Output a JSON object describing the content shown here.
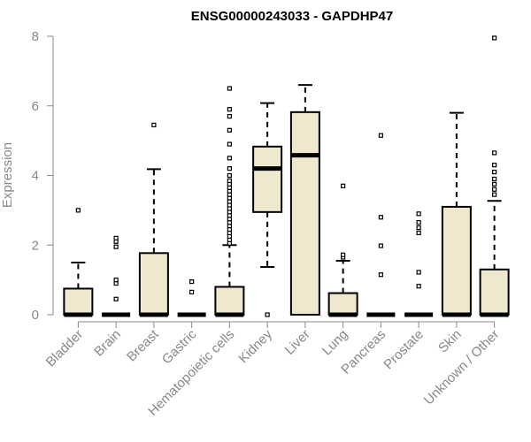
{
  "chart_data": {
    "type": "boxplot",
    "title": "ENSG00000243033 - GAPDHP47",
    "xlabel": "",
    "ylabel": "Expression",
    "ylim": [
      0,
      8
    ],
    "yticks": [
      0,
      2,
      4,
      6,
      8
    ],
    "grid": false,
    "colors": {
      "box_fill": "#efe8cf",
      "stroke": "#000000",
      "axis": "#888888"
    },
    "categories": [
      "Bladder",
      "Brain",
      "Breast",
      "Gastric",
      "Hematopoietic cells",
      "Kidney",
      "Liver",
      "Lung",
      "Pancreas",
      "Prostate",
      "Skin",
      "Unknown / Other"
    ],
    "boxes": [
      {
        "name": "Bladder",
        "q1": 0,
        "median": 0,
        "q3": 0.75,
        "whisker_low": 0,
        "whisker_high": 1.5,
        "outliers": [
          3.0
        ]
      },
      {
        "name": "Brain",
        "q1": 0,
        "median": 0,
        "q3": 0,
        "whisker_low": 0,
        "whisker_high": 0,
        "outliers": [
          0.45,
          0.9,
          1.0,
          1.95,
          2.1,
          2.2
        ]
      },
      {
        "name": "Breast",
        "q1": 0,
        "median": 0,
        "q3": 1.77,
        "whisker_low": 0,
        "whisker_high": 4.18,
        "outliers": [
          5.45
        ]
      },
      {
        "name": "Gastric",
        "q1": 0,
        "median": 0,
        "q3": 0,
        "whisker_low": 0,
        "whisker_high": 0,
        "outliers": [
          0.65,
          0.95
        ]
      },
      {
        "name": "Hematopoietic cells",
        "q1": 0,
        "median": 0,
        "q3": 0.8,
        "whisker_low": 0,
        "whisker_high": 2.0,
        "outliers": [
          2.05,
          2.15,
          2.25,
          2.35,
          2.45,
          2.55,
          2.65,
          2.75,
          2.85,
          2.95,
          3.05,
          3.15,
          3.25,
          3.35,
          3.45,
          3.55,
          3.65,
          3.75,
          3.85,
          4.0,
          4.2,
          4.5,
          4.9,
          5.3,
          5.7,
          5.9,
          6.5
        ]
      },
      {
        "name": "Kidney",
        "q1": 2.95,
        "median": 4.2,
        "q3": 4.83,
        "whisker_low": 1.37,
        "whisker_high": 6.08,
        "outliers": [
          0
        ]
      },
      {
        "name": "Liver",
        "q1": 0,
        "median": 4.58,
        "q3": 5.82,
        "whisker_low": 0,
        "whisker_high": 6.6,
        "outliers": []
      },
      {
        "name": "Lung",
        "q1": 0,
        "median": 0,
        "q3": 0.62,
        "whisker_low": 0,
        "whisker_high": 1.55,
        "outliers": [
          1.65,
          1.72,
          3.7
        ]
      },
      {
        "name": "Pancreas",
        "q1": 0,
        "median": 0,
        "q3": 0,
        "whisker_low": 0,
        "whisker_high": 0,
        "outliers": [
          1.15,
          1.98,
          2.8,
          5.15
        ]
      },
      {
        "name": "Prostate",
        "q1": 0,
        "median": 0,
        "q3": 0,
        "whisker_low": 0,
        "whisker_high": 0,
        "outliers": [
          0.82,
          1.22,
          2.35,
          2.5,
          2.65,
          2.9
        ]
      },
      {
        "name": "Skin",
        "q1": 0,
        "median": 0,
        "q3": 3.1,
        "whisker_low": 0,
        "whisker_high": 5.8,
        "outliers": []
      },
      {
        "name": "Unknown / Other",
        "q1": 0,
        "median": 0,
        "q3": 1.3,
        "whisker_low": 0,
        "whisker_high": 3.27,
        "outliers": [
          3.45,
          3.6,
          3.75,
          3.9,
          4.1,
          4.3,
          4.65,
          7.95
        ]
      }
    ]
  }
}
